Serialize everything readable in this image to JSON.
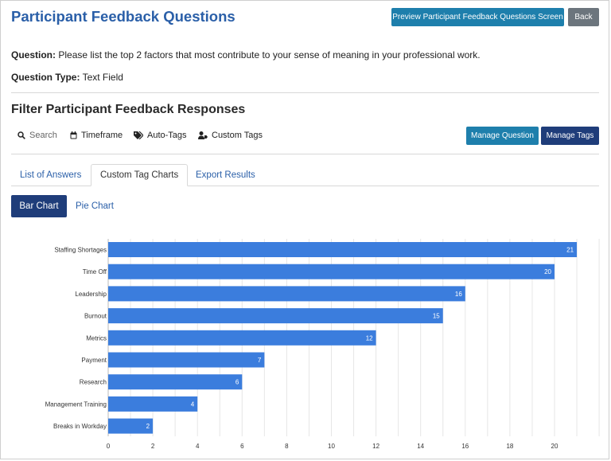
{
  "header": {
    "title": "Participant Feedback Questions",
    "preview_label": "Preview Participant Feedback Questions Screen",
    "back_label": "Back"
  },
  "question": {
    "label": "Question:",
    "text": "Please list the top 2 factors that most contribute to your sense of meaning in your professional work.",
    "type_label": "Question Type:",
    "type_value": "Text Field"
  },
  "filter": {
    "title": "Filter Participant Feedback Responses",
    "search": "Search",
    "timeframe": "Timeframe",
    "auto_tags": "Auto-Tags",
    "custom_tags": "Custom Tags",
    "manage_question": "Manage Question",
    "manage_tags": "Manage Tags"
  },
  "tabs": [
    {
      "label": "List of Answers"
    },
    {
      "label": "Custom Tag Charts"
    },
    {
      "label": "Export Results"
    }
  ],
  "chart_tabs": {
    "bar": "Bar Chart",
    "pie": "Pie Chart"
  },
  "colors": {
    "bar": "#3b7ddd",
    "primary": "#1e7fac",
    "dark": "#1f3d7a",
    "title": "#2a5fa8"
  },
  "chart_data": {
    "type": "bar",
    "orientation": "horizontal",
    "categories": [
      "Staffing Shortages",
      "Time Off",
      "Leadership",
      "Burnout",
      "Metrics",
      "Payment",
      "Research",
      "Management Training",
      "Breaks in Workday"
    ],
    "values": [
      21,
      20,
      16,
      15,
      12,
      7,
      6,
      4,
      2
    ],
    "xlim": [
      0,
      22
    ],
    "xticks": [
      0,
      2,
      4,
      6,
      8,
      10,
      12,
      14,
      16,
      18,
      20
    ],
    "grid": true
  }
}
